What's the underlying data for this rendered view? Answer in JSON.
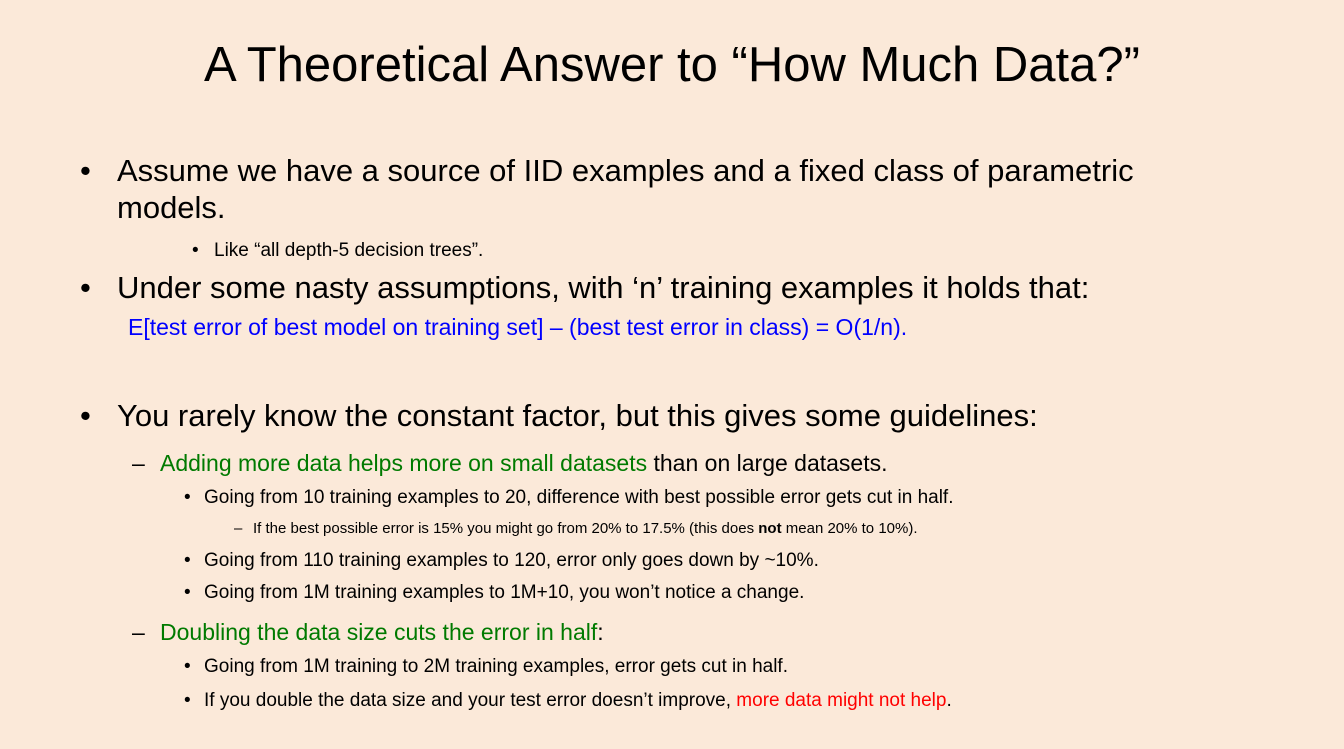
{
  "slide": {
    "title": "A Theoretical Answer to “How Much Data?”",
    "bullet1": {
      "line1": "Assume we have a source of IID examples and a fixed class of parametric",
      "line2": "models.",
      "sub": "Like “all depth-5 decision trees”."
    },
    "bullet2": {
      "text": "Under some nasty assumptions, with ‘n’ training examples it holds that:",
      "formula": "E[test error of best model on training set] – (best test error in class) = O(1/n)."
    },
    "bullet3": {
      "text": "You rarely know the constant factor, but this gives some guidelines:",
      "dash1": {
        "highlight": "Adding more data helps more on small datasets",
        "rest": " than on large datasets.",
        "items": [
          "Going from 10 training examples to 20, difference with best possible error gets cut in half.",
          "Going from 110 training examples to 120, error only goes down by ~10%.",
          "Going from 1M training examples to 1M+10, you won’t notice a change."
        ],
        "note": {
          "before": "If the best possible error is 15% you might go from 20% to 17.5% (this does ",
          "bold": "not",
          "after": " mean 20% to 10%)."
        }
      },
      "dash2": {
        "highlight": "Doubling the data size cuts the error in half",
        "rest": ":",
        "items": [
          "Going from 1M training to 2M training examples, error gets cut in half.",
          "If you double the data size and your test error doesn’t improve, "
        ],
        "red": "more data might not help",
        "end": "."
      }
    }
  },
  "colors": {
    "background": "#fbe9d9",
    "formula": "#0000ff",
    "emphasis": "#007a00",
    "warning": "#ff0000"
  }
}
